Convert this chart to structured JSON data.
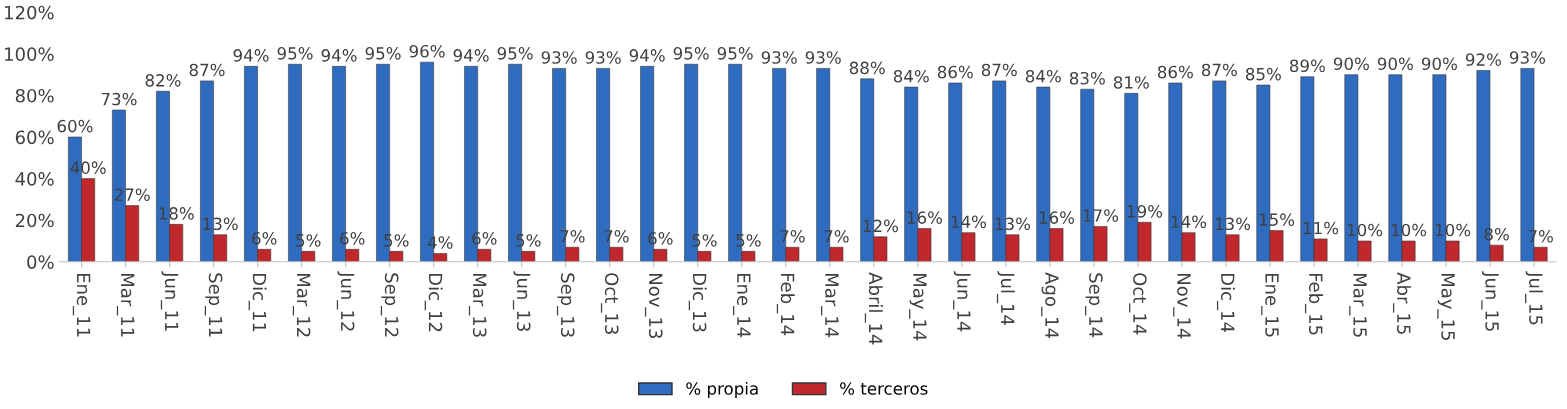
{
  "chart_data": {
    "type": "bar",
    "categories": [
      "Ene_11",
      "Mar_11",
      "Jun_11",
      "Sep_11",
      "Dic_11",
      "Mar_12",
      "Jun_12",
      "Sep_12",
      "Dic_12",
      "Mar_13",
      "Jun_13",
      "Sep_13",
      "Oct_13",
      "Nov_13",
      "Dic_13",
      "Ene_14",
      "Feb_14",
      "Mar_14",
      "Abril_14",
      "May_14",
      "Jun_14",
      "Jul_14",
      "Ago_14",
      "Sep_14",
      "Oct_14",
      "Nov_14",
      "Dic_14",
      "Ene_15",
      "Feb_15",
      "Mar_15",
      "Abr_15",
      "May_15",
      "Jun_15",
      "Jul_15"
    ],
    "series": [
      {
        "name": "% propia",
        "color": "#2f6cc0",
        "values": [
          60,
          73,
          82,
          87,
          94,
          95,
          94,
          95,
          96,
          94,
          95,
          93,
          93,
          94,
          95,
          95,
          93,
          93,
          88,
          84,
          86,
          87,
          84,
          83,
          81,
          86,
          87,
          85,
          89,
          90,
          90,
          90,
          92,
          93
        ],
        "value_labels": [
          "60%",
          "73%",
          "82%",
          "87%",
          "94%",
          "95%",
          "94%",
          "95%",
          "96%",
          "94%",
          "95%",
          "93%",
          "93%",
          "94%",
          "95%",
          "95%",
          "93%",
          "93%",
          "88%",
          "84%",
          "86%",
          "87%",
          "84%",
          "83%",
          "81%",
          "86%",
          "87%",
          "85%",
          "89%",
          "90%",
          "90%",
          "90%",
          "92%",
          "93%"
        ]
      },
      {
        "name": "% terceros",
        "color": "#c0282d",
        "values": [
          40,
          27,
          18,
          13,
          6,
          5,
          6,
          5,
          4,
          6,
          5,
          7,
          7,
          6,
          5,
          5,
          7,
          7,
          12,
          16,
          14,
          13,
          16,
          17,
          19,
          14,
          13,
          15,
          11,
          10,
          10,
          10,
          8,
          7
        ],
        "value_labels": [
          "40%",
          "27%",
          "18%",
          "13%",
          "6%",
          "5%",
          "6%",
          "5%",
          "4%",
          "6%",
          "5%",
          "7%",
          "7%",
          "6%",
          "5%",
          "5%",
          "7%",
          "7%",
          "12%",
          "16%",
          "14%",
          "13%",
          "16%",
          "17%",
          "19%",
          "14%",
          "13%",
          "15%",
          "11%",
          "10%",
          "10%",
          "10%",
          "8%",
          "7%"
        ]
      }
    ],
    "ylim": [
      0,
      120
    ],
    "yticks": [
      {
        "value": 0,
        "label": "0%"
      },
      {
        "value": 20,
        "label": "20%"
      },
      {
        "value": 40,
        "label": "40%"
      },
      {
        "value": 60,
        "label": "60%"
      },
      {
        "value": 80,
        "label": "80%"
      },
      {
        "value": 100,
        "label": "100%"
      },
      {
        "value": 120,
        "label": "120%"
      }
    ],
    "grid": false,
    "legend": "bottom"
  }
}
